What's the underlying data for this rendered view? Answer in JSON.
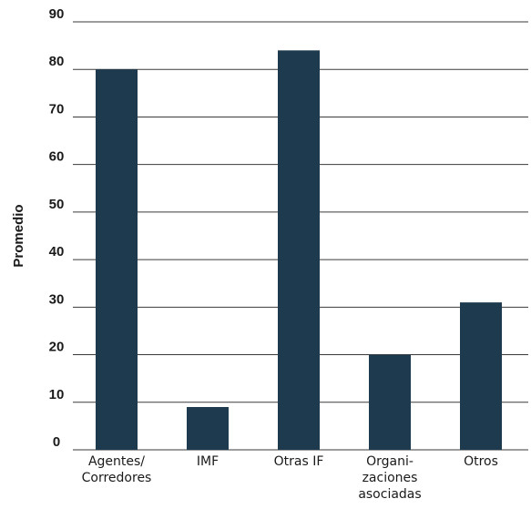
{
  "chart_data": {
    "type": "bar",
    "title": "",
    "xlabel": "",
    "ylabel": "Promedio",
    "ylim": [
      0,
      90
    ],
    "yticks": [
      0,
      10,
      20,
      30,
      40,
      50,
      60,
      70,
      80,
      90
    ],
    "categories": [
      [
        "Agentes/",
        "Corredores"
      ],
      [
        "IMF"
      ],
      [
        "Otras IF"
      ],
      [
        "Organi-",
        "zaciones",
        "asociadas"
      ],
      [
        "Otros"
      ]
    ],
    "values": [
      80,
      9,
      84,
      20,
      31
    ],
    "bar_color": "#1e3a4f",
    "grid": true,
    "legend": "none"
  }
}
